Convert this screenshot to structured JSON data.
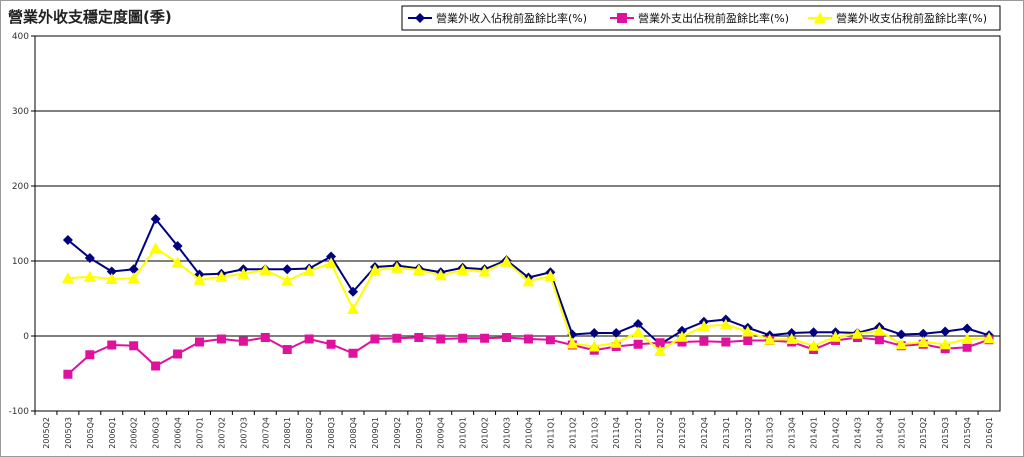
{
  "chart_data": {
    "type": "line",
    "title": "營業外收支穩定度圖(季)",
    "ylim": [
      -100,
      400
    ],
    "yticks": [
      -100,
      0,
      100,
      200,
      300,
      400
    ],
    "grid": "horizontal",
    "legend_position": "top-right",
    "categories": [
      "2005Q2",
      "2005Q3",
      "2005Q4",
      "2006Q1",
      "2006Q2",
      "2006Q3",
      "2006Q4",
      "2007Q1",
      "2007Q2",
      "2007Q3",
      "2007Q4",
      "2008Q1",
      "2008Q2",
      "2008Q3",
      "2008Q4",
      "2009Q1",
      "2009Q2",
      "2009Q3",
      "2009Q4",
      "2010Q1",
      "2010Q2",
      "2010Q3",
      "2010Q4",
      "2011Q1",
      "2011Q2",
      "2011Q3",
      "2011Q4",
      "2012Q1",
      "2012Q2",
      "2012Q3",
      "2012Q4",
      "2013Q1",
      "2013Q2",
      "2013Q3",
      "2013Q4",
      "2014Q1",
      "2014Q2",
      "2014Q3",
      "2014Q4",
      "2015Q1",
      "2015Q2",
      "2015Q3",
      "2015Q4",
      "2016Q1"
    ],
    "series": [
      {
        "name": "營業外收入佔稅前盈餘比率(%)",
        "color": "#000080",
        "marker": "diamond",
        "values": [
          null,
          128,
          104,
          86,
          89,
          156,
          120,
          82,
          83,
          89,
          89,
          89,
          90,
          106,
          59,
          92,
          94,
          90,
          85,
          91,
          89,
          101,
          78,
          85,
          2,
          4,
          4,
          16,
          -11,
          7,
          19,
          22,
          11,
          1,
          4,
          5,
          5,
          4,
          12,
          2,
          3,
          6,
          10,
          1
        ]
      },
      {
        "name": "營業外支出佔稅前盈餘比率(%)",
        "color": "#E0119D",
        "marker": "square",
        "values": [
          null,
          -51,
          -25,
          -12,
          -13,
          -40,
          -24,
          -8,
          -4,
          -7,
          -2,
          -18,
          -4,
          -11,
          -23,
          -4,
          -3,
          -2,
          -4,
          -3,
          -3,
          -2,
          -4,
          -5,
          -12,
          -19,
          -14,
          -11,
          -9,
          -8,
          -7,
          -8,
          -6,
          -6,
          -8,
          -18,
          -6,
          -2,
          -5,
          -13,
          -11,
          -17,
          -15,
          -5
        ]
      },
      {
        "name": "營業外收支佔稅前盈餘比率(%)",
        "color": "#FFFF00",
        "marker": "triangle",
        "values": [
          null,
          77,
          79,
          76,
          77,
          117,
          98,
          75,
          79,
          83,
          88,
          74,
          87,
          97,
          36,
          88,
          91,
          88,
          81,
          88,
          86,
          99,
          73,
          80,
          -10,
          -14,
          -9,
          5,
          -20,
          -1,
          13,
          15,
          6,
          -5,
          -4,
          -13,
          -1,
          3,
          7,
          -11,
          -8,
          -11,
          -4,
          -3
        ]
      }
    ]
  }
}
